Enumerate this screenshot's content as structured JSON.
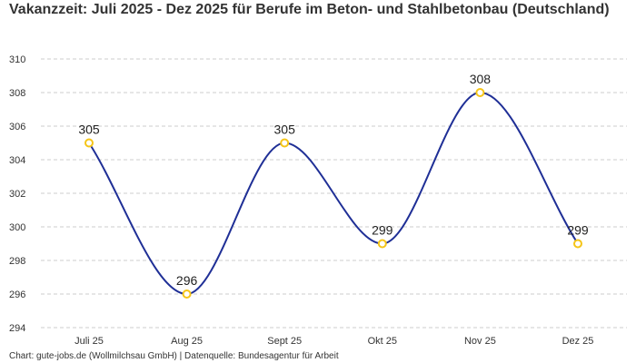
{
  "chart_data": {
    "type": "line",
    "title": "Vakanzzeit: Juli 2025 - Dez 2025 für Berufe im Beton- und Stahlbetonbau (Deutschland)",
    "categories": [
      "Juli 25",
      "Aug 25",
      "Sept 25",
      "Okt 25",
      "Nov 25",
      "Dez 25"
    ],
    "values": [
      305,
      296,
      305,
      299,
      308,
      299
    ],
    "xlabel": "",
    "ylabel": "",
    "ylim": [
      294,
      310
    ],
    "yticks": [
      294,
      296,
      298,
      300,
      302,
      304,
      306,
      308,
      310
    ],
    "grid": true,
    "smooth": true,
    "data_labels": true,
    "colors": {
      "line": "#1f2f96",
      "marker": "#f5c518"
    },
    "footer": "Chart: gute-jobs.de (Wollmilchsau GmbH) | Datenquelle: Bundesagentur für Arbeit"
  }
}
